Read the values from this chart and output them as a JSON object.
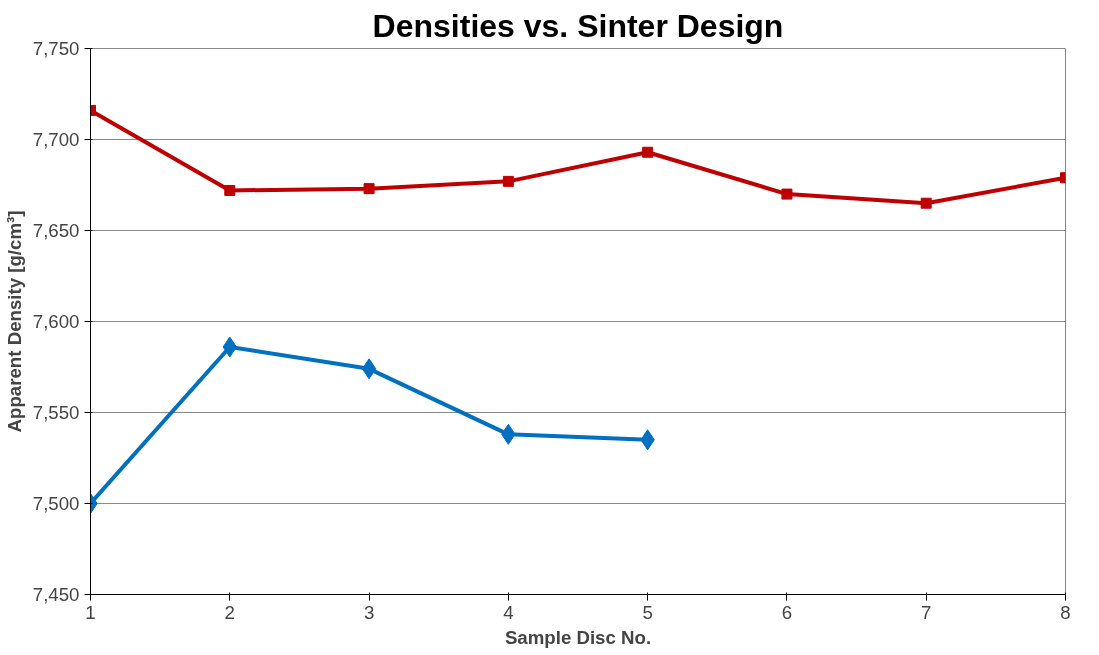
{
  "chart_data": {
    "type": "line",
    "title": "Densities vs. Sinter Design",
    "xlabel": "Sample Disc No.",
    "ylabel": "Apparent Density [g/cm³]",
    "x": [
      1,
      2,
      3,
      4,
      5,
      6,
      7,
      8
    ],
    "series": [
      {
        "color": "#c00000",
        "marker": "square",
        "values": [
          7716,
          7672,
          7673,
          7677,
          7693,
          7670,
          7665,
          7679
        ]
      },
      {
        "color": "#0070c0",
        "marker": "diamond",
        "values": [
          7500,
          7586,
          7574,
          7538,
          7535,
          null,
          null,
          null
        ]
      }
    ],
    "xlim": [
      1,
      8
    ],
    "xticks": [
      1,
      2,
      3,
      4,
      5,
      6,
      7,
      8
    ],
    "ylim": [
      7450,
      7750
    ],
    "yticks": [
      {
        "value": 7450,
        "label": "7,450"
      },
      {
        "value": 7500,
        "label": "7,500"
      },
      {
        "value": 7550,
        "label": "7,550"
      },
      {
        "value": 7600,
        "label": "7,600"
      },
      {
        "value": 7650,
        "label": "7,650"
      },
      {
        "value": 7700,
        "label": "7,700"
      },
      {
        "value": 7750,
        "label": "7,750"
      }
    ],
    "grid": "y",
    "line_style": "solid"
  }
}
